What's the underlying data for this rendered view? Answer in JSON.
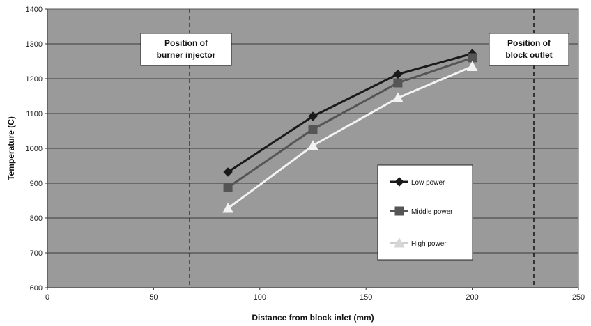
{
  "chart_data": {
    "type": "line",
    "title": "",
    "xlabel": "Distance from block inlet (mm)",
    "ylabel": "Temperature (C)",
    "xlim": [
      0,
      250
    ],
    "ylim": [
      600,
      1400
    ],
    "xticks": [
      0,
      50,
      100,
      150,
      200,
      250
    ],
    "yticks": [
      600,
      700,
      800,
      900,
      1000,
      1100,
      1200,
      1300,
      1400
    ],
    "grid": "horizontal",
    "legend_placement": "lower-right",
    "plot_background": "#9a9a9a",
    "series": [
      {
        "name": "Low power",
        "color": "#1a1a1a",
        "marker": "diamond",
        "x": [
          85,
          125,
          165,
          200
        ],
        "y": [
          932,
          1092,
          1213,
          1272
        ]
      },
      {
        "name": "Middle power",
        "color": "#555555",
        "marker": "square",
        "x": [
          85,
          125,
          165,
          200
        ],
        "y": [
          888,
          1055,
          1188,
          1260
        ]
      },
      {
        "name": "High power",
        "color": "#f2f2f2",
        "marker": "triangle",
        "x": [
          85,
          125,
          165,
          200
        ],
        "y": [
          828,
          1008,
          1145,
          1235
        ]
      }
    ],
    "annotations": [
      {
        "x": 67,
        "style": "dashed-vertical",
        "label_lines": [
          "Position of",
          "burner injector"
        ]
      },
      {
        "x": 229,
        "style": "dashed-vertical",
        "label_lines": [
          "Position of",
          "block outlet"
        ]
      }
    ]
  }
}
